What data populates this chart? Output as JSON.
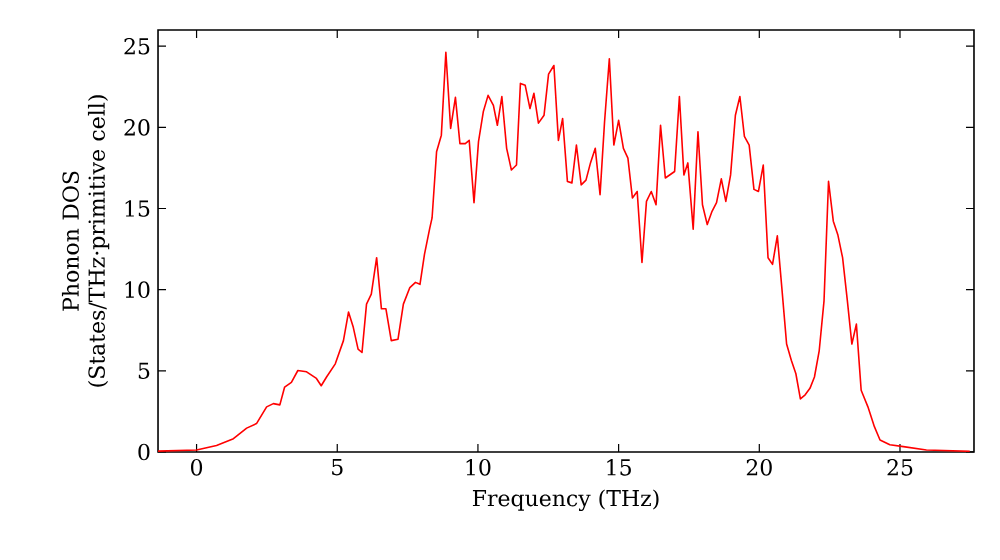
{
  "chart_data": {
    "type": "line",
    "xlabel": "Frequency (THz)",
    "ylabel": "Phonon DOS (States/THz·primitive cell)",
    "xlim": [
      -1.37,
      27.63
    ],
    "ylim": [
      0,
      26
    ],
    "xticks": [
      0,
      5,
      10,
      15,
      20,
      25
    ],
    "yticks": [
      0,
      5,
      10,
      15,
      20,
      25
    ],
    "series": [
      {
        "color": "#ff0000",
        "x": [
          -1.37,
          0,
          0.71,
          1.31,
          1.78,
          2.13,
          2.49,
          2.73,
          2.96,
          3.13,
          3.37,
          3.6,
          3.91,
          4.26,
          4.43,
          4.62,
          4.93,
          5.22,
          5.4,
          5.57,
          5.74,
          5.88,
          6.04,
          6.21,
          6.4,
          6.57,
          6.73,
          6.92,
          7.16,
          7.35,
          7.58,
          7.78,
          7.94,
          8.1,
          8.29,
          8.37,
          8.53,
          8.7,
          8.86,
          9.03,
          9.2,
          9.36,
          9.55,
          9.69,
          9.86,
          10.02,
          10.19,
          10.36,
          10.55,
          10.69,
          10.85,
          11.02,
          11.19,
          11.37,
          11.51,
          11.68,
          11.85,
          11.99,
          12.15,
          12.35,
          12.51,
          12.7,
          12.86,
          13.01,
          13.18,
          13.34,
          13.5,
          13.67,
          13.84,
          14.0,
          14.17,
          14.34,
          14.5,
          14.67,
          14.83,
          15.0,
          15.17,
          15.33,
          15.49,
          15.66,
          15.83,
          15.99,
          16.16,
          16.33,
          16.49,
          16.66,
          16.99,
          17.16,
          17.32,
          17.46,
          17.65,
          17.82,
          17.98,
          18.15,
          18.32,
          18.48,
          18.65,
          18.81,
          18.98,
          19.15,
          19.31,
          19.47,
          19.64,
          19.81,
          19.97,
          20.14,
          20.31,
          20.47,
          20.64,
          20.8,
          20.97,
          21.14,
          21.3,
          21.46,
          21.63,
          21.8,
          21.96,
          22.13,
          22.3,
          22.46,
          22.63,
          22.79,
          22.96,
          23.13,
          23.29,
          23.45,
          23.62,
          23.86,
          24.09,
          24.29,
          24.64,
          25.12,
          25.94,
          27.48
        ],
        "values": [
          0.05,
          0.12,
          0.4,
          0.82,
          1.47,
          1.75,
          2.78,
          2.98,
          2.9,
          4.0,
          4.29,
          5.02,
          4.94,
          4.53,
          4.08,
          4.62,
          5.43,
          6.86,
          8.62,
          7.68,
          6.34,
          6.13,
          9.11,
          9.72,
          11.97,
          8.82,
          8.82,
          6.86,
          6.95,
          9.11,
          10.13,
          10.45,
          10.33,
          12.17,
          13.81,
          14.42,
          18.5,
          19.52,
          24.63,
          19.94,
          21.85,
          19.0,
          19.0,
          19.2,
          15.36,
          19.12,
          20.96,
          21.97,
          21.36,
          20.13,
          21.9,
          18.71,
          17.37,
          17.68,
          22.71,
          22.59,
          21.16,
          22.1,
          20.26,
          20.75,
          23.28,
          23.81,
          19.2,
          20.55,
          16.67,
          16.58,
          18.91,
          16.46,
          16.75,
          17.81,
          18.71,
          15.85,
          20.34,
          24.23,
          18.91,
          20.43,
          18.71,
          18.1,
          15.65,
          16.05,
          11.68,
          15.44,
          16.05,
          15.23,
          20.13,
          16.88,
          17.28,
          21.9,
          17.07,
          17.81,
          13.73,
          19.73,
          15.23,
          14.01,
          14.83,
          15.36,
          16.83,
          15.44,
          17.07,
          20.75,
          21.9,
          19.45,
          18.91,
          16.18,
          16.05,
          17.68,
          11.97,
          11.56,
          13.32,
          10.13,
          6.65,
          5.64,
          4.82,
          3.27,
          3.52,
          3.92,
          4.62,
          6.25,
          9.31,
          16.67,
          14.22,
          13.39,
          11.97,
          9.31,
          6.65,
          7.88,
          3.8,
          2.78,
          1.56,
          0.74,
          0.45,
          0.33,
          0.12,
          0.04
        ]
      }
    ]
  }
}
